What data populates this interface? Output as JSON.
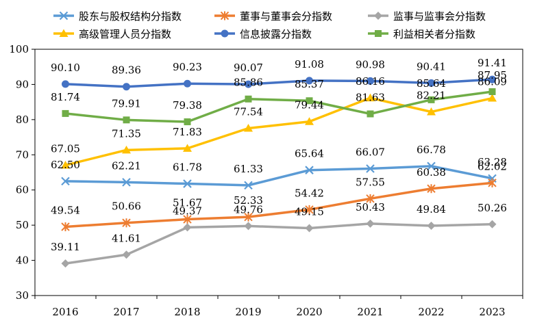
{
  "chart_data": {
    "type": "line",
    "categories": [
      "2016",
      "2017",
      "2018",
      "2019",
      "2020",
      "2021",
      "2022",
      "2023"
    ],
    "ylim": [
      30,
      100
    ],
    "yticks": [
      "30",
      "40",
      "50",
      "60",
      "70",
      "80",
      "90",
      "100"
    ],
    "grid": false,
    "legend_position": "top",
    "series": [
      {
        "name": "股东与股权结构分指数",
        "color": "#5B9BD5",
        "marker": "x",
        "values": [
          62.5,
          62.21,
          61.78,
          61.33,
          65.64,
          66.07,
          66.78,
          63.28
        ],
        "labels": [
          "62.50",
          "62.21",
          "61.78",
          "61.33",
          "65.64",
          "66.07",
          "66.78",
          "63.28"
        ]
      },
      {
        "name": "董事与董事会分指数",
        "color": "#ED7D31",
        "marker": "star",
        "values": [
          49.54,
          50.66,
          51.67,
          52.33,
          54.42,
          57.55,
          60.38,
          62.02
        ],
        "labels": [
          "49.54",
          "50.66",
          "51.67",
          "52.33",
          "54.42",
          "57.55",
          "60.38",
          "62.02"
        ]
      },
      {
        "name": "监事与监事会分指数",
        "color": "#A5A5A5",
        "marker": "diamond",
        "values": [
          39.11,
          41.61,
          49.37,
          49.76,
          49.15,
          50.43,
          49.84,
          50.26
        ],
        "labels": [
          "39.11",
          "41.61",
          "49.37",
          "49.76",
          "49.15",
          "50.43",
          "49.84",
          "50.26"
        ]
      },
      {
        "name": "高级管理人员分指数",
        "color": "#FFC000",
        "marker": "triangle",
        "values": [
          67.05,
          71.35,
          71.83,
          77.54,
          79.44,
          86.16,
          82.21,
          86.09
        ],
        "labels": [
          "67.05",
          "71.35",
          "71.83",
          "77.54",
          "79.44",
          "86.16",
          "82.21",
          "86.09"
        ]
      },
      {
        "name": "信息披露分指数",
        "color": "#4472C4",
        "marker": "circle",
        "values": [
          90.1,
          89.36,
          90.23,
          90.07,
          91.08,
          90.98,
          90.41,
          91.41
        ],
        "labels": [
          "90.10",
          "89.36",
          "90.23",
          "90.07",
          "91.08",
          "90.98",
          "90.41",
          "91.41"
        ]
      },
      {
        "name": "利益相关者分指数",
        "color": "#70AD47",
        "marker": "square",
        "values": [
          81.74,
          79.91,
          79.38,
          85.86,
          85.37,
          81.63,
          85.64,
          87.95
        ],
        "labels": [
          "81.74",
          "79.91",
          "79.38",
          "85.86",
          "85.37",
          "81.63",
          "85.64",
          "87.95"
        ]
      }
    ]
  }
}
